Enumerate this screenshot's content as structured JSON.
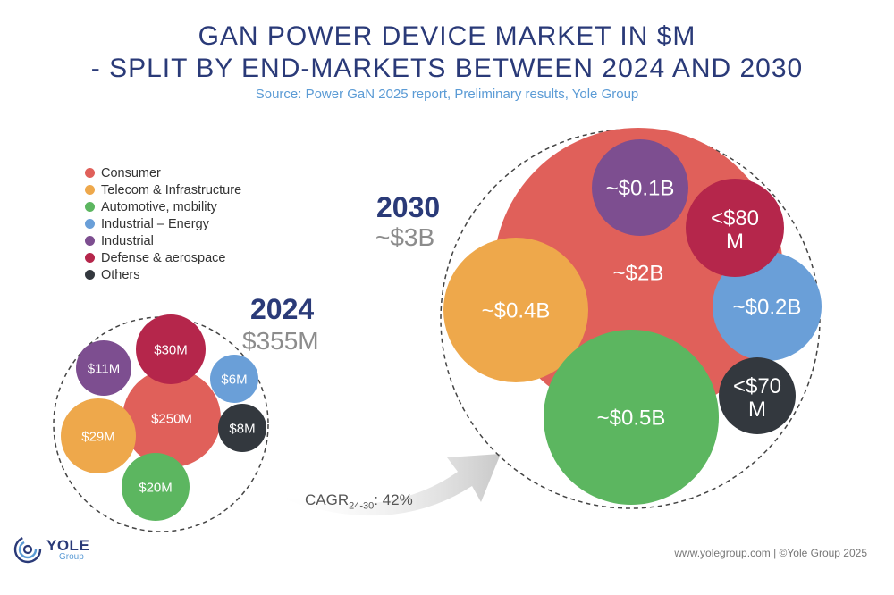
{
  "title_line1": "GAN POWER DEVICE MARKET IN $M",
  "title_line2": "- SPLIT BY END-MARKETS BETWEEN 2024 AND 2030",
  "subtitle": "Source: Power GaN 2025 report, Preliminary results, Yole Group",
  "legend": [
    {
      "label": "Consumer",
      "color": "#e0605a"
    },
    {
      "label": "Telecom & Infrastructure",
      "color": "#eea84b"
    },
    {
      "label": "Automotive, mobility",
      "color": "#5cb660"
    },
    {
      "label": "Industrial – Energy",
      "color": "#6a9fd8"
    },
    {
      "label": "Industrial",
      "color": "#7d4e90"
    },
    {
      "label": "Defense & aerospace",
      "color": "#b5264b"
    },
    {
      "label": "Others",
      "color": "#33383e"
    }
  ],
  "chart_data": {
    "type": "bubble",
    "title": "GaN power device market in $M - split by end-markets between 2024 and 2030",
    "cagr": {
      "label": "CAGR",
      "period": "24-30",
      "value": ": 42%"
    },
    "years": [
      {
        "year": "2024",
        "total": "$355M",
        "segments": [
          {
            "market": "Consumer",
            "label": "$250M",
            "value": 250
          },
          {
            "market": "Telecom & Infrastructure",
            "label": "$29M",
            "value": 29
          },
          {
            "market": "Automotive, mobility",
            "label": "$20M",
            "value": 20
          },
          {
            "market": "Industrial – Energy",
            "label": "$6M",
            "value": 6
          },
          {
            "market": "Industrial",
            "label": "$11M",
            "value": 11
          },
          {
            "market": "Defense & aerospace",
            "label": "$30M",
            "value": 30
          },
          {
            "market": "Others",
            "label": "$8M",
            "value": 8
          }
        ]
      },
      {
        "year": "2030",
        "total": "~$3B",
        "segments": [
          {
            "market": "Consumer",
            "label": "~$2B",
            "value": 2000
          },
          {
            "market": "Telecom & Infrastructure",
            "label": "~$0.4B",
            "value": 400
          },
          {
            "market": "Automotive, mobility",
            "label": "~$0.5B",
            "value": 500
          },
          {
            "market": "Industrial – Energy",
            "label": "~$0.2B",
            "value": 200
          },
          {
            "market": "Industrial",
            "label": "~$0.1B",
            "value": 100
          },
          {
            "market": "Defense & aerospace",
            "label": "<$80 M",
            "value": 80
          },
          {
            "market": "Others",
            "label": "<$70 M",
            "value": 70
          }
        ]
      }
    ]
  },
  "logo": {
    "name": "YOLE",
    "sub": "Group"
  },
  "footer": "www.yolegroup.com | ©Yole Group 2025"
}
